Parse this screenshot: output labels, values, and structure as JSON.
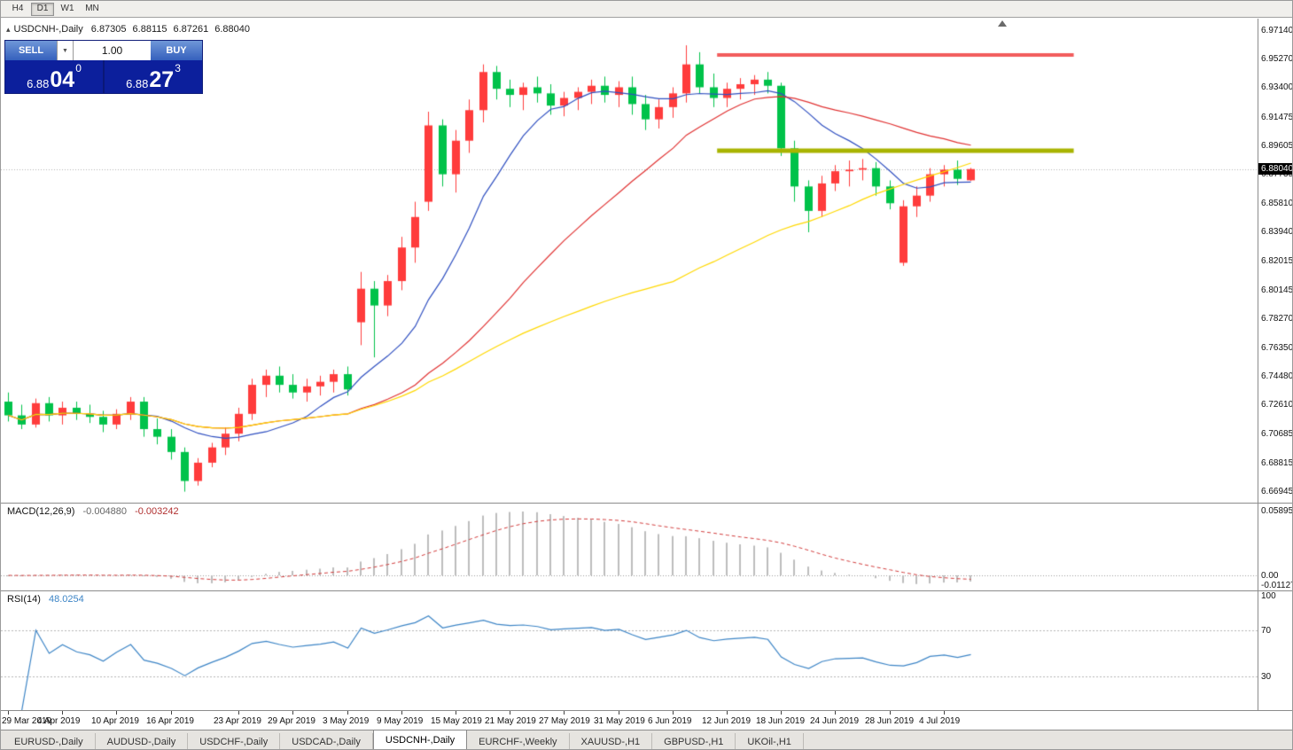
{
  "toolbar": {
    "timeframes": [
      "H4",
      "D1",
      "W1",
      "MN"
    ],
    "active": "D1"
  },
  "icons": {
    "collapse_arrow": "▴",
    "dropdown_arrow": "▼"
  },
  "chart": {
    "symbol_label": "USDCNH-,Daily",
    "open": "6.87305",
    "high": "6.88115",
    "low": "6.87261",
    "close": "6.88040",
    "current_price": "6.88040"
  },
  "one_click": {
    "sell_label": "SELL",
    "buy_label": "BUY",
    "volume": "1.00",
    "sell_price": {
      "small": "6.88",
      "big": "04",
      "sup": "0"
    },
    "buy_price": {
      "small": "6.88",
      "big": "27",
      "sup": "3"
    }
  },
  "tabs": {
    "items": [
      "EURUSD-,Daily",
      "AUDUSD-,Daily",
      "USDCHF-,Daily",
      "USDCAD-,Daily",
      "USDCNH-,Daily",
      "EURCHF-,Weekly",
      "XAUUSD-,H1",
      "GBPUSD-,H1",
      "UKOil-,H1"
    ],
    "active_index": 4
  },
  "chart_data": {
    "type": "candlestick",
    "symbol": "USDCNH",
    "timeframe": "Daily",
    "y_range": {
      "top": 6.979,
      "bottom": 6.6618
    },
    "price_axis": [
      "6.97140",
      "6.95270",
      "6.93400",
      "6.91475",
      "6.89605",
      "6.87735",
      "6.85810",
      "6.83940",
      "6.82015",
      "6.80145",
      "6.78270",
      "6.76350",
      "6.74480",
      "6.72610",
      "6.70685",
      "6.68815",
      "6.66945"
    ],
    "time_ticks": [
      {
        "i": 0,
        "label": "29 Mar 2019"
      },
      {
        "i": 4,
        "label": "4 Apr 2019"
      },
      {
        "i": 8,
        "label": "10 Apr 2019"
      },
      {
        "i": 12,
        "label": "16 Apr 2019"
      },
      {
        "i": 17,
        "label": "23 Apr 2019"
      },
      {
        "i": 21,
        "label": "29 Apr 2019"
      },
      {
        "i": 25,
        "label": "3 May 2019"
      },
      {
        "i": 29,
        "label": "9 May 2019"
      },
      {
        "i": 33,
        "label": "15 May 2019"
      },
      {
        "i": 37,
        "label": "21 May 2019"
      },
      {
        "i": 41,
        "label": "27 May 2019"
      },
      {
        "i": 45,
        "label": "31 May 2019"
      },
      {
        "i": 49,
        "label": "6 Jun 2019"
      },
      {
        "i": 53,
        "label": "12 Jun 2019"
      },
      {
        "i": 57,
        "label": "18 Jun 2019"
      },
      {
        "i": 61,
        "label": "24 Jun 2019"
      },
      {
        "i": 65,
        "label": "28 Jun 2019"
      },
      {
        "i": 69,
        "label": "4 Jul 2019"
      }
    ],
    "dates": [
      "2019.03.29",
      "2019.04.01",
      "2019.04.02",
      "2019.04.03",
      "2019.04.04",
      "2019.04.05",
      "2019.04.08",
      "2019.04.09",
      "2019.04.10",
      "2019.04.11",
      "2019.04.12",
      "2019.04.15",
      "2019.04.16",
      "2019.04.17",
      "2019.04.18",
      "2019.04.19",
      "2019.04.22",
      "2019.04.23",
      "2019.04.24",
      "2019.04.25",
      "2019.04.26",
      "2019.04.29",
      "2019.04.30",
      "2019.05.01",
      "2019.05.02",
      "2019.05.03",
      "2019.05.06",
      "2019.05.07",
      "2019.05.08",
      "2019.05.09",
      "2019.05.10",
      "2019.05.13",
      "2019.05.14",
      "2019.05.15",
      "2019.05.16",
      "2019.05.17",
      "2019.05.20",
      "2019.05.21",
      "2019.05.22",
      "2019.05.23",
      "2019.05.24",
      "2019.05.27",
      "2019.05.28",
      "2019.05.29",
      "2019.05.30",
      "2019.05.31",
      "2019.06.03",
      "2019.06.04",
      "2019.06.05",
      "2019.06.06",
      "2019.06.07",
      "2019.06.10",
      "2019.06.11",
      "2019.06.12",
      "2019.06.13",
      "2019.06.14",
      "2019.06.17",
      "2019.06.18",
      "2019.06.19",
      "2019.06.20",
      "2019.06.21",
      "2019.06.24",
      "2019.06.25",
      "2019.06.26",
      "2019.06.27",
      "2019.06.28",
      "2019.07.01",
      "2019.07.02",
      "2019.07.03",
      "2019.07.04",
      "2019.07.05",
      "2019.07.08"
    ],
    "ohlc": [
      [
        6.728,
        6.734,
        6.715,
        6.719
      ],
      [
        6.719,
        6.726,
        6.71,
        6.713
      ],
      [
        6.713,
        6.73,
        6.711,
        6.727
      ],
      [
        6.727,
        6.731,
        6.715,
        6.719
      ],
      [
        6.719,
        6.728,
        6.713,
        6.724
      ],
      [
        6.724,
        6.728,
        6.716,
        6.72
      ],
      [
        6.72,
        6.726,
        6.714,
        6.718
      ],
      [
        6.718,
        6.722,
        6.708,
        6.713
      ],
      [
        6.713,
        6.723,
        6.71,
        6.72
      ],
      [
        6.72,
        6.731,
        6.716,
        6.728
      ],
      [
        6.728,
        6.731,
        6.705,
        6.71
      ],
      [
        6.71,
        6.717,
        6.7,
        6.705
      ],
      [
        6.705,
        6.71,
        6.69,
        6.695
      ],
      [
        6.695,
        6.698,
        6.669,
        6.676
      ],
      [
        6.676,
        6.691,
        6.673,
        6.688
      ],
      [
        6.688,
        6.701,
        6.685,
        6.698
      ],
      [
        6.698,
        6.711,
        6.693,
        6.707
      ],
      [
        6.707,
        6.724,
        6.702,
        6.72
      ],
      [
        6.72,
        6.743,
        6.716,
        6.739
      ],
      [
        6.739,
        6.749,
        6.731,
        6.745
      ],
      [
        6.745,
        6.751,
        6.734,
        6.739
      ],
      [
        6.739,
        6.746,
        6.73,
        6.734
      ],
      [
        6.734,
        6.743,
        6.728,
        6.738
      ],
      [
        6.738,
        6.745,
        6.732,
        6.741
      ],
      [
        6.741,
        6.749,
        6.734,
        6.746
      ],
      [
        6.746,
        6.751,
        6.732,
        6.736
      ],
      [
        6.78,
        6.813,
        6.765,
        6.802
      ],
      [
        6.802,
        6.807,
        6.757,
        6.791
      ],
      [
        6.791,
        6.811,
        6.784,
        6.807
      ],
      [
        6.807,
        6.836,
        6.801,
        6.829
      ],
      [
        6.829,
        6.859,
        6.819,
        6.849
      ],
      [
        6.859,
        6.918,
        6.853,
        6.909
      ],
      [
        6.909,
        6.913,
        6.869,
        6.877
      ],
      [
        6.877,
        6.906,
        6.865,
        6.899
      ],
      [
        6.899,
        6.926,
        6.891,
        6.919
      ],
      [
        6.919,
        6.949,
        6.911,
        6.944
      ],
      [
        6.944,
        6.948,
        6.926,
        6.933
      ],
      [
        6.933,
        6.939,
        6.921,
        6.929
      ],
      [
        6.929,
        6.937,
        6.919,
        6.934
      ],
      [
        6.934,
        6.941,
        6.924,
        6.93
      ],
      [
        6.93,
        6.936,
        6.916,
        6.922
      ],
      [
        6.922,
        6.931,
        6.915,
        6.927
      ],
      [
        6.927,
        6.934,
        6.919,
        6.931
      ],
      [
        6.931,
        6.939,
        6.923,
        6.935
      ],
      [
        6.935,
        6.941,
        6.924,
        6.929
      ],
      [
        6.929,
        6.938,
        6.921,
        6.934
      ],
      [
        6.934,
        6.941,
        6.916,
        6.923
      ],
      [
        6.923,
        6.929,
        6.906,
        6.913
      ],
      [
        6.913,
        6.926,
        6.907,
        6.921
      ],
      [
        6.921,
        6.934,
        6.914,
        6.93
      ],
      [
        6.93,
        6.9615,
        6.924,
        6.949
      ],
      [
        6.949,
        6.957,
        6.93,
        6.934
      ],
      [
        6.934,
        6.943,
        6.921,
        6.927
      ],
      [
        6.927,
        6.937,
        6.921,
        6.933
      ],
      [
        6.933,
        6.94,
        6.926,
        6.936
      ],
      [
        6.936,
        6.942,
        6.929,
        6.939
      ],
      [
        6.939,
        6.944,
        6.93,
        6.935
      ],
      [
        6.935,
        6.937,
        6.889,
        6.894
      ],
      [
        6.894,
        6.899,
        6.859,
        6.869
      ],
      [
        6.869,
        6.873,
        6.839,
        6.853
      ],
      [
        6.853,
        6.876,
        6.849,
        6.871
      ],
      [
        6.871,
        6.883,
        6.866,
        6.879
      ],
      [
        6.879,
        6.886,
        6.869,
        6.88
      ],
      [
        6.88,
        6.887,
        6.873,
        6.881
      ],
      [
        6.881,
        6.885,
        6.863,
        6.869
      ],
      [
        6.869,
        6.873,
        6.854,
        6.858
      ],
      [
        6.819,
        6.86,
        6.817,
        6.856
      ],
      [
        6.856,
        6.869,
        6.849,
        6.863
      ],
      [
        6.863,
        6.881,
        6.859,
        6.877
      ],
      [
        6.877,
        6.883,
        6.869,
        6.88
      ],
      [
        6.88,
        6.886,
        6.87,
        6.874
      ],
      [
        6.87305,
        6.88115,
        6.87261,
        6.8804
      ]
    ],
    "candle_colors": {
      "bull": "#ff3c3c",
      "bear": "#00c24a"
    },
    "moving_averages": [
      {
        "name": "fast",
        "period": 10,
        "color": "#2f4fc0"
      },
      {
        "name": "mid",
        "period": 25,
        "color": "#e03232"
      },
      {
        "name": "slow",
        "period": 50,
        "color": "#ffd800"
      }
    ],
    "hlines": [
      {
        "name": "resistance",
        "price": 6.955,
        "color": "#f25c5c",
        "width": 4
      },
      {
        "name": "support",
        "price": 6.8925,
        "color": "#a8b400",
        "width": 5
      }
    ],
    "hline_span": {
      "from_index": 52.3,
      "to_index": 78.6
    },
    "current_price_line": {
      "price": 6.8804,
      "color": "#b0b0b0"
    },
    "indicators": {
      "macd": {
        "name": "MACD(12,26,9)",
        "main_value": "-0.004880",
        "signal_value": "-0.003242",
        "axis": [
          "0.058954",
          "0.00",
          "-0.011273"
        ],
        "hist_color": "#bdbdbd",
        "signal_color": "#d23c3c"
      },
      "rsi": {
        "name": "RSI(14)",
        "value": "48.0254",
        "axis": [
          "100",
          "70",
          "30"
        ],
        "levels": [
          70,
          30
        ],
        "line_color": "#3d85c6"
      }
    }
  }
}
